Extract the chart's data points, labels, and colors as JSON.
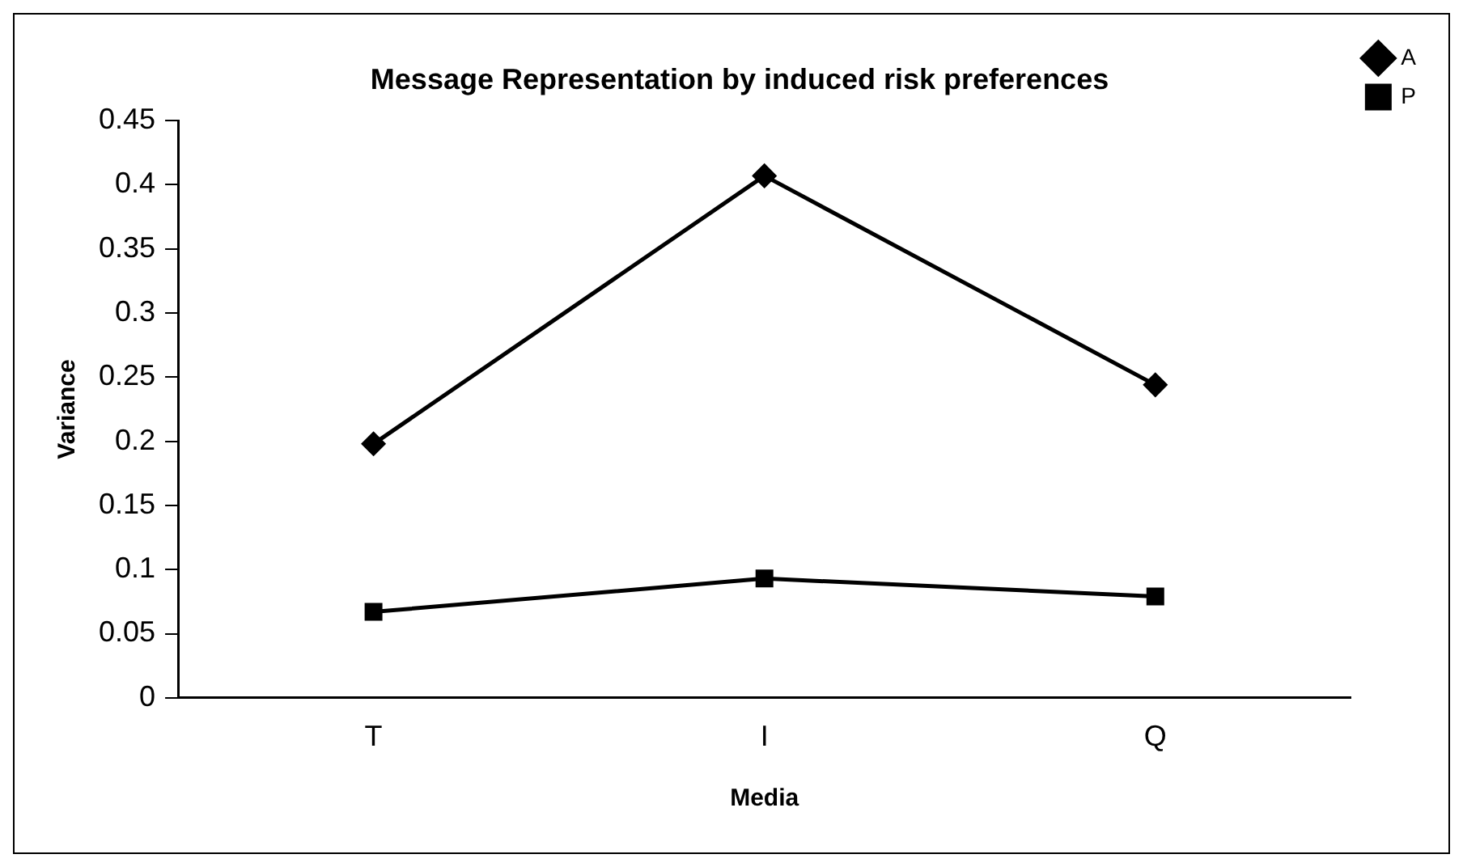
{
  "chart_data": {
    "type": "line",
    "title": "Message Representation by induced risk preferences",
    "xlabel": "Media",
    "ylabel": "Variance",
    "categories": [
      "T",
      "I",
      "Q"
    ],
    "series": [
      {
        "name": "A",
        "color": "#000000",
        "marker": "diamond",
        "values": [
          0.198,
          0.407,
          0.244
        ]
      },
      {
        "name": "P",
        "color": "#000000",
        "marker": "square",
        "values": [
          0.067,
          0.093,
          0.079
        ]
      }
    ],
    "ylim": [
      0,
      0.45
    ],
    "yticks": [
      0,
      0.05,
      0.1,
      0.15,
      0.2,
      0.25,
      0.3,
      0.35,
      0.4,
      0.45
    ],
    "grid": false,
    "legend": "top right"
  }
}
